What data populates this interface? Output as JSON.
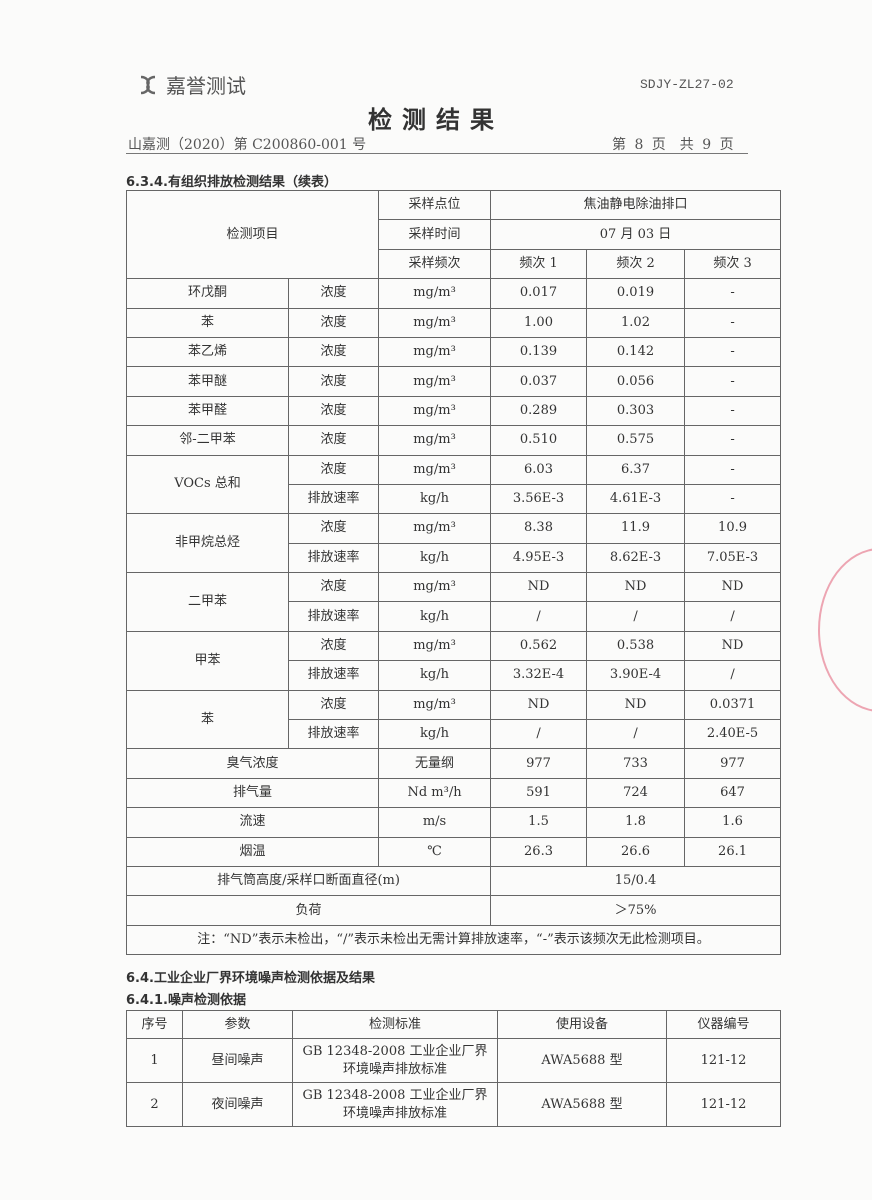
{
  "header": {
    "logo_text": "嘉誉测试",
    "form_code": "SDJY-ZL27-02",
    "title": "检测结果",
    "report_no": "山嘉测（2020）第 C200860-001 号",
    "page": "第 8 页　共 9 页"
  },
  "section1": {
    "heading": "6.3.4.有组织排放检测结果（续表）",
    "labels": {
      "item": "检测项目",
      "point_label": "采样点位",
      "point": "焦油静电除油排口",
      "time_label": "采样时间",
      "time": "07 月 03 日",
      "freq_label": "采样频次",
      "freqs": [
        "频次 1",
        "频次 2",
        "频次 3"
      ]
    },
    "rows": [
      {
        "name": "环戊酮",
        "param": "浓度",
        "unit": "mg/m³",
        "v": [
          "0.017",
          "0.019",
          "-"
        ]
      },
      {
        "name": "苯",
        "param": "浓度",
        "unit": "mg/m³",
        "v": [
          "1.00",
          "1.02",
          "-"
        ]
      },
      {
        "name": "苯乙烯",
        "param": "浓度",
        "unit": "mg/m³",
        "v": [
          "0.139",
          "0.142",
          "-"
        ]
      },
      {
        "name": "苯甲醚",
        "param": "浓度",
        "unit": "mg/m³",
        "v": [
          "0.037",
          "0.056",
          "-"
        ]
      },
      {
        "name": "苯甲醛",
        "param": "浓度",
        "unit": "mg/m³",
        "v": [
          "0.289",
          "0.303",
          "-"
        ]
      },
      {
        "name": "邻-二甲苯",
        "param": "浓度",
        "unit": "mg/m³",
        "v": [
          "0.510",
          "0.575",
          "-"
        ]
      },
      {
        "name": "VOCs 总和",
        "param": "浓度",
        "unit": "mg/m³",
        "v": [
          "6.03",
          "6.37",
          "-"
        ]
      },
      {
        "name": "",
        "param": "排放速率",
        "unit": "kg/h",
        "v": [
          "3.56E-3",
          "4.61E-3",
          "-"
        ]
      },
      {
        "name": "非甲烷总烃",
        "param": "浓度",
        "unit": "mg/m³",
        "v": [
          "8.38",
          "11.9",
          "10.9"
        ]
      },
      {
        "name": "",
        "param": "排放速率",
        "unit": "kg/h",
        "v": [
          "4.95E-3",
          "8.62E-3",
          "7.05E-3"
        ]
      },
      {
        "name": "二甲苯",
        "param": "浓度",
        "unit": "mg/m³",
        "v": [
          "ND",
          "ND",
          "ND"
        ]
      },
      {
        "name": "",
        "param": "排放速率",
        "unit": "kg/h",
        "v": [
          "/",
          "/",
          "/"
        ]
      },
      {
        "name": "甲苯",
        "param": "浓度",
        "unit": "mg/m³",
        "v": [
          "0.562",
          "0.538",
          "ND"
        ]
      },
      {
        "name": "",
        "param": "排放速率",
        "unit": "kg/h",
        "v": [
          "3.32E-4",
          "3.90E-4",
          "/"
        ]
      },
      {
        "name": "苯",
        "param": "浓度",
        "unit": "mg/m³",
        "v": [
          "ND",
          "ND",
          "0.0371"
        ]
      },
      {
        "name": "",
        "param": "排放速率",
        "unit": "kg/h",
        "v": [
          "/",
          "/",
          "2.40E-5"
        ]
      },
      {
        "name": "臭气浓度",
        "param": null,
        "unit": "无量纲",
        "v": [
          "977",
          "733",
          "977"
        ]
      },
      {
        "name": "排气量",
        "param": null,
        "unit": "Nd m³/h",
        "v": [
          "591",
          "724",
          "647"
        ]
      },
      {
        "name": "流速",
        "param": null,
        "unit": "m/s",
        "v": [
          "1.5",
          "1.8",
          "1.6"
        ]
      },
      {
        "name": "烟温",
        "param": null,
        "unit": "℃",
        "v": [
          "26.3",
          "26.6",
          "26.1"
        ]
      }
    ],
    "stack_label": "排气筒高度/采样口断面直径(m)",
    "stack_value": "15/0.4",
    "load_label": "负荷",
    "load_value": "＞75%",
    "note": "注：“ND”表示未检出，“/”表示未检出无需计算排放速率，“-”表示该频次无此检测项目。"
  },
  "section2": {
    "heading": "6.4.工业企业厂界环境噪声检测依据及结果",
    "subheading": "6.4.1.噪声检测依据",
    "columns": [
      "序号",
      "参数",
      "检测标准",
      "使用设备",
      "仪器编号"
    ],
    "rows": [
      [
        "1",
        "昼间噪声",
        "GB 12348-2008 工业企业厂界环境噪声排放标准",
        "AWA5688 型",
        "121-12"
      ],
      [
        "2",
        "夜间噪声",
        "GB 12348-2008 工业企业厂界环境噪声排放标准",
        "AWA5688 型",
        "121-12"
      ]
    ]
  }
}
